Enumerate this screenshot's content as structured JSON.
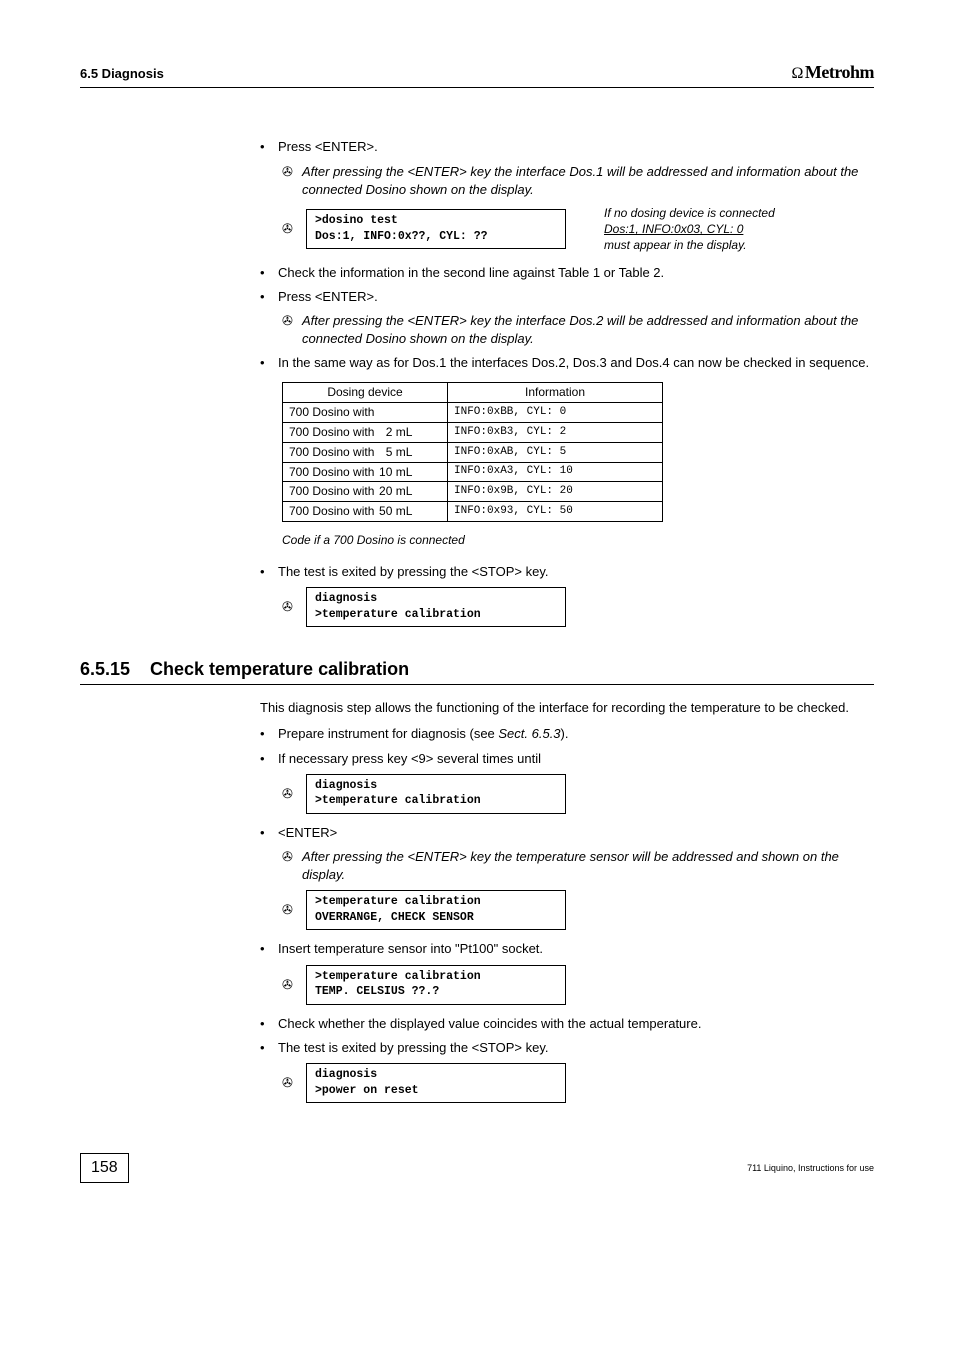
{
  "header": {
    "left": "6.5 Diagnosis",
    "brand_icon": "Ω",
    "brand": "Metrohm"
  },
  "block1": {
    "b1": "Press <ENTER>.",
    "s1": "After pressing the <ENTER> key the interface Dos.1 will be addressed and information about the connected Dosino shown on the display.",
    "disp1": {
      "l1": ">dosino test",
      "l2": "Dos:1, INFO:0x??, CYL: ??"
    },
    "note": {
      "l1": "If no dosing device is connected",
      "l2": "Dos:1, INFO:0x03, CYL: 0",
      "l3": "must appear in the display."
    },
    "b2": "Check the information in the second line against Table 1 or Table 2.",
    "b3": "Press <ENTER>.",
    "s2": "After pressing the <ENTER> key the interface Dos.2 will be addressed and information about the connected Dosino shown on the display.",
    "b4": "In the same way as for Dos.1 the interfaces Dos.2, Dos.3 and Dos.4 can now be checked in sequence."
  },
  "table": {
    "h1": "Dosing device",
    "h2": "Information",
    "rows": [
      {
        "d": "700 Dosino with",
        "v": "",
        "i": "INFO:0xBB, CYL:  0"
      },
      {
        "d": "700 Dosino with",
        "v": "2 mL",
        "i": "INFO:0xB3, CYL:  2"
      },
      {
        "d": "700 Dosino with",
        "v": "5 mL",
        "i": "INFO:0xAB, CYL:  5"
      },
      {
        "d": "700 Dosino with",
        "v": "10 mL",
        "i": "INFO:0xA3, CYL: 10"
      },
      {
        "d": "700 Dosino with",
        "v": "20 mL",
        "i": "INFO:0x9B, CYL: 20"
      },
      {
        "d": "700 Dosino with",
        "v": "50 mL",
        "i": "INFO:0x93, CYL: 50"
      }
    ],
    "caption": "Code if a 700 Dosino is connected"
  },
  "block2": {
    "b1": "The test is exited by pressing the <STOP> key.",
    "disp1": {
      "l1": "diagnosis",
      "l2": ">temperature calibration"
    }
  },
  "section": {
    "num": "6.5.15",
    "title": "Check temperature calibration"
  },
  "intro": "This diagnosis step allows the functioning of the interface for recording the temperature to be checked.",
  "block3": {
    "b1": "Prepare instrument for diagnosis (see ",
    "b1i": "Sect. 6.5.3",
    "b1e": ").",
    "b2": "If necessary press key <9> several times until",
    "disp1": {
      "l1": "diagnosis",
      "l2": ">temperature calibration"
    },
    "b3": "<ENTER>",
    "s1": "After pressing the <ENTER> key the temperature sensor will be addressed and shown on the display.",
    "disp2": {
      "l1": ">temperature calibration",
      "l2": "OVERRANGE,   CHECK SENSOR"
    },
    "b4": "Insert temperature sensor into \"Pt100\" socket.",
    "disp3": {
      "l1": ">temperature calibration",
      "l2": "TEMP. CELSIUS  ??.?"
    },
    "b5": "Check whether the displayed value coincides with the actual temperature.",
    "b6": "The test is exited by pressing the <STOP> key.",
    "disp4": {
      "l1": "diagnosis",
      "l2": ">power on reset"
    }
  },
  "footer": {
    "page": "158",
    "right": "711 Liquino, Instructions for use"
  }
}
